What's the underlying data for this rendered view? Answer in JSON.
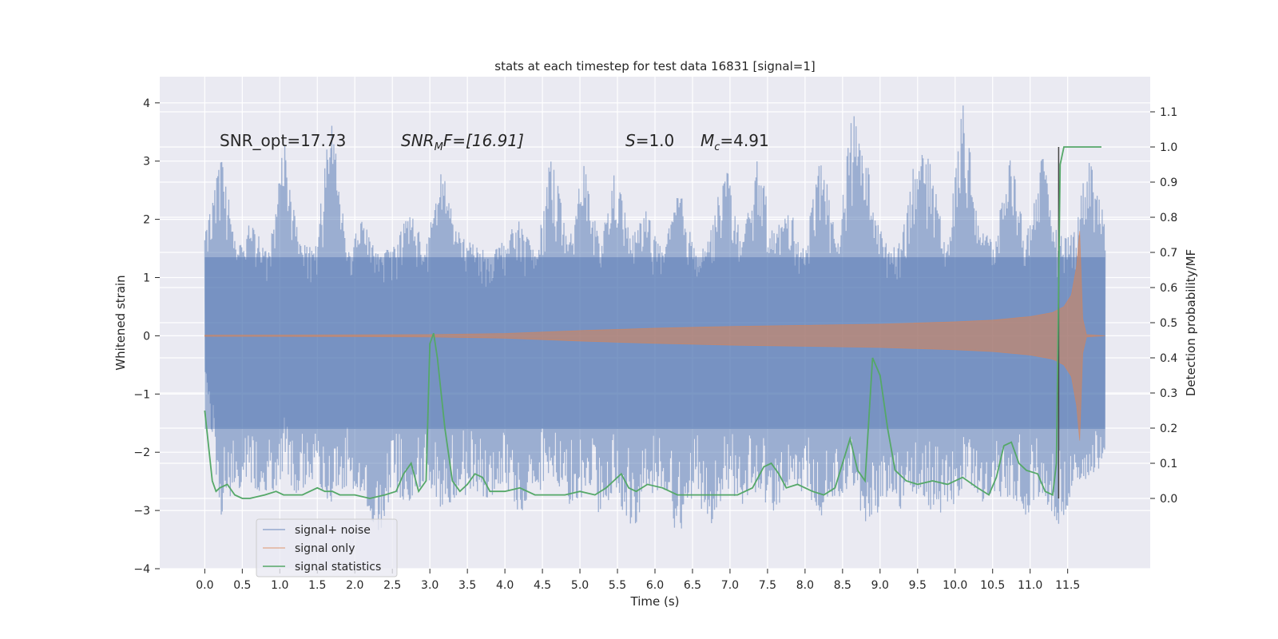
{
  "chart_data": {
    "type": "line",
    "title": "stats at each timestep for test data 16831 [signal=1]",
    "xlabel": "Time (s)",
    "ylabel_left": "Whitened strain",
    "ylabel_right": "Detection probability/MF",
    "xlim": [
      -0.6,
      12.6
    ],
    "ylim_left": [
      -4.0,
      4.45
    ],
    "ylim_right": [
      -0.2,
      1.2
    ],
    "x_ticks": [
      "0.0",
      "0.5",
      "1.0",
      "1.5",
      "2.0",
      "2.5",
      "3.0",
      "3.5",
      "4.0",
      "4.5",
      "5.0",
      "5.5",
      "6.0",
      "6.5",
      "7.0",
      "7.5",
      "8.0",
      "8.5",
      "9.0",
      "9.5",
      "10.0",
      "10.5",
      "11.0",
      "11.5"
    ],
    "y_ticks_left": [
      "−4",
      "−3",
      "−2",
      "−1",
      "0",
      "1",
      "2",
      "3",
      "4"
    ],
    "y_ticks_right": [
      "0.0",
      "0.1",
      "0.2",
      "0.3",
      "0.4",
      "0.5",
      "0.6",
      "0.7",
      "0.8",
      "0.9",
      "1.0",
      "1.1"
    ],
    "grid": true,
    "legend_position": "lower-left",
    "annotations": {
      "snr_opt": "SNR_opt=17.73",
      "snr_mf_prefix": "SNR",
      "snr_mf_sub": "M",
      "snr_mf_suffix": "F=[16.91]",
      "s_label": "S",
      "s_value": "=1.0",
      "mc_label": "M",
      "mc_sub": "c",
      "mc_value": "=4.91"
    },
    "detection_marker_x": 11.38,
    "series": [
      {
        "name": "signal+ noise",
        "color": "#4c72b0",
        "axis": "left",
        "x_range": [
          0.0,
          12.0
        ],
        "envelope_upper": [
          1.7,
          3.3,
          1.5,
          2.0,
          1.4,
          3.4,
          1.6,
          1.5,
          3.85,
          1.5,
          2.0,
          1.4,
          1.6,
          2.2,
          1.5,
          3.0,
          1.8,
          1.6,
          1.4,
          1.7,
          2.0,
          1.4,
          3.3,
          1.5,
          3.0,
          1.6,
          2.9,
          1.7,
          2.2,
          1.4,
          2.6,
          1.5,
          1.8,
          3.0,
          1.6,
          3.1,
          1.8,
          2.2,
          1.5,
          3.35,
          1.6,
          3.9,
          2.9,
          1.6,
          1.6,
          3.2,
          3.0,
          1.5,
          4.1,
          2.0,
          1.6,
          3.2,
          1.7,
          3.15,
          1.7,
          1.8,
          3.2,
          2.0
        ],
        "envelope_lower": [
          -0.6,
          -3.1,
          -2.7,
          -2.6,
          -2.8,
          -2.4,
          -2.9,
          -2.5,
          -2.9,
          -2.6,
          -2.8,
          -3.5,
          -2.7,
          -3.0,
          -2.5,
          -3.0,
          -2.8,
          -2.7,
          -2.9,
          -2.6,
          -3.1,
          -2.7,
          -2.5,
          -2.9,
          -2.8,
          -3.1,
          -2.6,
          -3.5,
          -2.7,
          -2.9,
          -3.6,
          -2.8,
          -3.3,
          -2.6,
          -2.9,
          -2.7,
          -3.1,
          -2.6,
          -2.7,
          -3.1,
          -2.8,
          -2.6,
          -3.4,
          -2.8,
          -3.0,
          -2.7,
          -3.0,
          -3.2,
          -2.6,
          -2.9,
          -2.8,
          -2.8,
          -3.1,
          -2.7,
          -3.3,
          -2.7,
          -2.4,
          -2.3
        ]
      },
      {
        "name": "signal only",
        "color": "#dd8452",
        "axis": "left",
        "x": [
          0.0,
          1.0,
          2.0,
          3.0,
          4.0,
          5.0,
          6.0,
          7.0,
          8.0,
          9.0,
          10.0,
          10.5,
          11.0,
          11.3,
          11.45,
          11.55,
          11.62,
          11.66,
          11.7,
          11.75,
          12.0
        ],
        "amplitude": [
          0.01,
          0.012,
          0.015,
          0.02,
          0.04,
          0.09,
          0.13,
          0.16,
          0.18,
          0.2,
          0.24,
          0.27,
          0.33,
          0.4,
          0.5,
          0.7,
          1.2,
          1.8,
          0.3,
          0.02,
          0.0
        ]
      },
      {
        "name": "signal statistics",
        "color": "#55a868",
        "axis": "right",
        "x": [
          0.0,
          0.05,
          0.1,
          0.15,
          0.2,
          0.3,
          0.4,
          0.5,
          0.6,
          0.8,
          0.95,
          1.05,
          1.15,
          1.3,
          1.5,
          1.6,
          1.7,
          1.8,
          2.0,
          2.2,
          2.4,
          2.55,
          2.65,
          2.75,
          2.85,
          2.95,
          3.0,
          3.05,
          3.1,
          3.2,
          3.3,
          3.4,
          3.5,
          3.6,
          3.7,
          3.8,
          4.0,
          4.2,
          4.4,
          4.6,
          4.8,
          5.0,
          5.2,
          5.35,
          5.45,
          5.55,
          5.65,
          5.75,
          5.9,
          6.1,
          6.3,
          6.5,
          6.7,
          6.9,
          7.1,
          7.3,
          7.45,
          7.55,
          7.65,
          7.75,
          7.9,
          8.1,
          8.25,
          8.4,
          8.5,
          8.6,
          8.7,
          8.8,
          8.9,
          9.0,
          9.1,
          9.2,
          9.35,
          9.5,
          9.7,
          9.9,
          10.1,
          10.3,
          10.45,
          10.55,
          10.65,
          10.75,
          10.85,
          10.95,
          11.1,
          11.2,
          11.3,
          11.35,
          11.4,
          11.45,
          11.5,
          11.6,
          11.8,
          11.95
        ],
        "y": [
          0.25,
          0.15,
          0.05,
          0.02,
          0.03,
          0.04,
          0.01,
          0.0,
          0.0,
          0.01,
          0.02,
          0.01,
          0.01,
          0.01,
          0.03,
          0.02,
          0.02,
          0.01,
          0.01,
          0.0,
          0.01,
          0.02,
          0.07,
          0.1,
          0.02,
          0.05,
          0.44,
          0.47,
          0.4,
          0.2,
          0.05,
          0.02,
          0.04,
          0.07,
          0.06,
          0.02,
          0.02,
          0.03,
          0.01,
          0.01,
          0.01,
          0.02,
          0.01,
          0.03,
          0.05,
          0.07,
          0.03,
          0.02,
          0.04,
          0.03,
          0.01,
          0.01,
          0.01,
          0.01,
          0.01,
          0.03,
          0.09,
          0.1,
          0.07,
          0.03,
          0.04,
          0.02,
          0.01,
          0.03,
          0.1,
          0.17,
          0.08,
          0.05,
          0.4,
          0.35,
          0.2,
          0.08,
          0.05,
          0.04,
          0.05,
          0.04,
          0.06,
          0.03,
          0.01,
          0.06,
          0.15,
          0.16,
          0.1,
          0.08,
          0.07,
          0.02,
          0.01,
          0.1,
          0.95,
          1.0,
          1.0,
          1.0,
          1.0,
          1.0
        ]
      }
    ]
  }
}
